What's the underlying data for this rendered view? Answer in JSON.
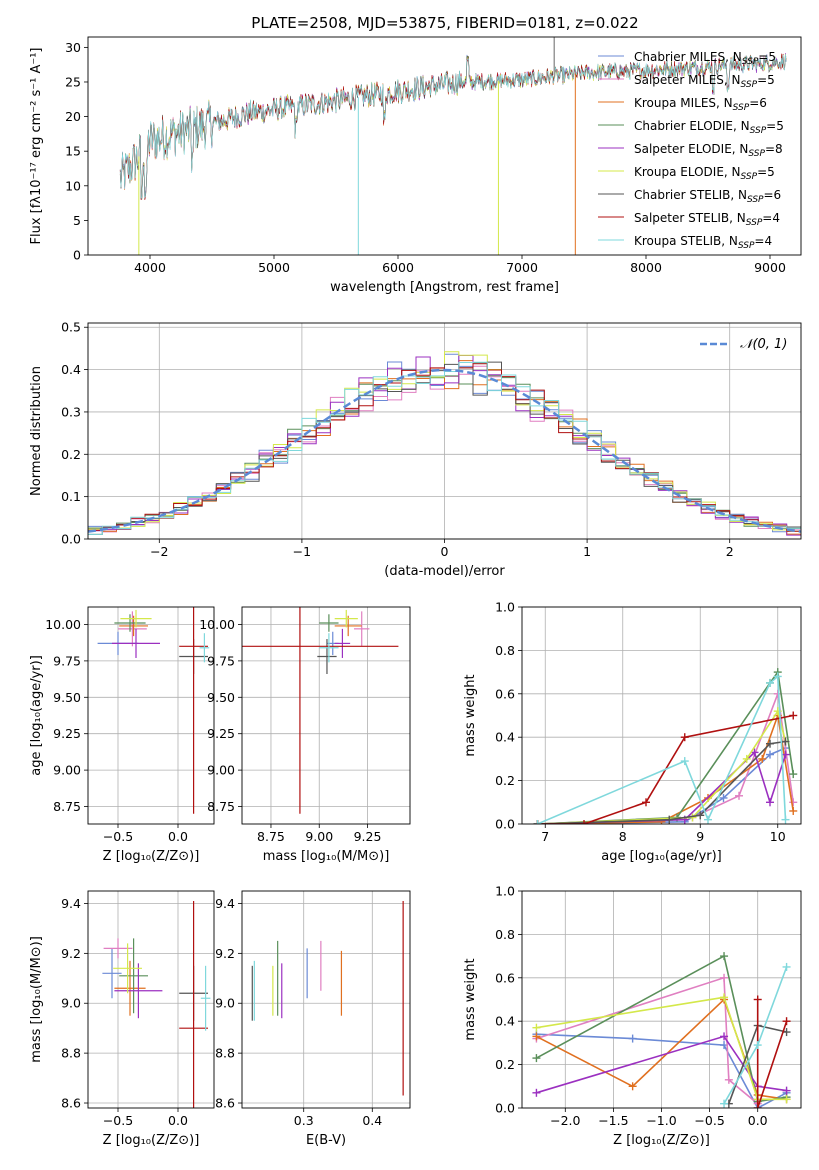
{
  "figure": {
    "title": "PLATE=2508, MJD=53875, FIBERID=0181, z=0.022"
  },
  "chart_data": [
    {
      "type": "line",
      "id": "spectrum",
      "xlabel": "wavelength [Angstrom, rest frame]",
      "ylabel": "Flux [fλ10⁻¹⁷ erg cm⁻² s⁻¹ A⁻¹]",
      "xlim": [
        3500,
        9250
      ],
      "ylim": [
        0,
        31.5
      ],
      "xticks": [
        4000,
        5000,
        6000,
        7000,
        8000,
        9000
      ],
      "yticks": [
        0,
        5,
        10,
        15,
        20,
        25,
        30
      ],
      "grid": false,
      "legend": "top-right",
      "wave_start": 3760,
      "wave_end": 9130,
      "continuum": [
        [
          3760,
          11
        ],
        [
          3900,
          14
        ],
        [
          4000,
          16.5
        ],
        [
          4200,
          17.5
        ],
        [
          4500,
          19
        ],
        [
          4800,
          20.5
        ],
        [
          5000,
          21
        ],
        [
          5500,
          22.3
        ],
        [
          6000,
          23.7
        ],
        [
          6500,
          25
        ],
        [
          7000,
          25.3
        ],
        [
          7500,
          26.3
        ],
        [
          8000,
          26.7
        ],
        [
          8500,
          27.2
        ],
        [
          9000,
          27.8
        ],
        [
          9130,
          28
        ]
      ],
      "series": [
        {
          "name": "Chabrier MILES, N_SSP=5",
          "color": "#6b8ad6"
        },
        {
          "name": "Salpeter MILES, N_SSP=5",
          "color": "#e07fc1"
        },
        {
          "name": "Kroupa MILES, N_SSP=6",
          "color": "#e07020"
        },
        {
          "name": "Chabrier ELODIE, N_SSP=5",
          "color": "#5a8f5a"
        },
        {
          "name": "Salpeter ELODIE, N_SSP=8",
          "color": "#9b30c0"
        },
        {
          "name": "Kroupa ELODIE, N_SSP=5",
          "color": "#d4e84a"
        },
        {
          "name": "Chabrier STELIB, N_SSP=6",
          "color": "#555555"
        },
        {
          "name": "Salpeter STELIB, N_SSP=4",
          "color": "#b01010"
        },
        {
          "name": "Kroupa STELIB, N_SSP=4",
          "color": "#7fd8dc"
        }
      ],
      "legend_labels": [
        {
          "pre": "Chabrier MILES, N",
          "sub": "SSP",
          "post": "=5"
        },
        {
          "pre": "Salpeter MILES, N",
          "sub": "SSP",
          "post": "=5"
        },
        {
          "pre": "Kroupa MILES, N",
          "sub": "SSP",
          "post": "=6"
        },
        {
          "pre": "Chabrier ELODIE, N",
          "sub": "SSP",
          "post": "=5"
        },
        {
          "pre": "Salpeter ELODIE, N",
          "sub": "SSP",
          "post": "=8"
        },
        {
          "pre": "Kroupa ELODIE, N",
          "sub": "SSP",
          "post": "=5"
        },
        {
          "pre": "Chabrier STELIB, N",
          "sub": "SSP",
          "post": "=6"
        },
        {
          "pre": "Salpeter STELIB, N",
          "sub": "SSP",
          "post": "=4"
        },
        {
          "pre": "Kroupa STELIB, N",
          "sub": "SSP",
          "post": "=4"
        }
      ]
    },
    {
      "type": "histogram",
      "id": "residuals",
      "xlabel": "(data-model)/error",
      "ylabel": "Normed distribution",
      "xlim": [
        -2.5,
        2.5
      ],
      "ylim": [
        0,
        0.51
      ],
      "xticks": [
        -2,
        -1,
        0,
        1,
        2
      ],
      "yticks": [
        0.0,
        0.1,
        0.2,
        0.3,
        0.4,
        0.5
      ],
      "grid": true,
      "legend": "top-right",
      "normal_label": "𝒩(0, 1)",
      "normal_color": "#5a8ad6",
      "bin_width": 0.1
    },
    {
      "type": "errorbar",
      "id": "age-vs-z",
      "xlabel": "Z [log₁₀(Z/Z⊙)]",
      "ylabel": "age  [log₁₀(age/yr)]",
      "xlim": [
        -0.75,
        0.3
      ],
      "ylim": [
        8.63,
        10.12
      ],
      "xticks": [
        -0.5,
        0.0
      ],
      "yticks": [
        8.75,
        9.0,
        9.25,
        9.5,
        9.75,
        10.0
      ],
      "grid": true,
      "points": [
        {
          "color": "#6b8ad6",
          "x": -0.5,
          "y": 9.87,
          "xe": 0.17,
          "ye": 0.08
        },
        {
          "color": "#e07fc1",
          "x": -0.38,
          "y": 9.97,
          "xe": 0.12,
          "ye": 0.12
        },
        {
          "color": "#e07020",
          "x": -0.37,
          "y": 9.99,
          "xe": 0.12,
          "ye": 0.07
        },
        {
          "color": "#5a8f5a",
          "x": -0.4,
          "y": 10.01,
          "xe": 0.13,
          "ye": 0.06
        },
        {
          "color": "#9b30c0",
          "x": -0.35,
          "y": 9.87,
          "xe": 0.2,
          "ye": 0.1
        },
        {
          "color": "#d4e84a",
          "x": -0.35,
          "y": 10.04,
          "xe": 0.13,
          "ye": 0.06
        },
        {
          "color": "#555555",
          "x": 0.13,
          "y": 9.78,
          "xe": 0.12,
          "ye": 0.12
        },
        {
          "color": "#b01010",
          "x": 0.13,
          "y": 9.85,
          "xe": 0.12,
          "ye": 1.15
        },
        {
          "color": "#7fd8dc",
          "x": 0.22,
          "y": 9.84,
          "xe": 0.04,
          "ye": 0.1
        }
      ]
    },
    {
      "type": "errorbar",
      "id": "age-vs-mass",
      "xlabel": "mass [log₁₀(M/M⊙)]",
      "ylabel": "",
      "xlim": [
        8.6,
        9.47
      ],
      "ylim": [
        8.63,
        10.12
      ],
      "xticks": [
        8.75,
        9.0,
        9.25
      ],
      "xticklabels": [
        "8.75",
        "9.00",
        "9.25"
      ],
      "yticks": [
        8.75,
        9.0,
        9.25,
        9.5,
        9.75,
        10.0
      ],
      "grid": true,
      "points": [
        {
          "color": "#6b8ad6",
          "x": 9.07,
          "y": 9.87,
          "xe": 0.03,
          "ye": 0.08
        },
        {
          "color": "#e07fc1",
          "x": 9.22,
          "y": 9.97,
          "xe": 0.04,
          "ye": 0.12
        },
        {
          "color": "#e07020",
          "x": 9.15,
          "y": 9.99,
          "xe": 0.07,
          "ye": 0.07
        },
        {
          "color": "#5a8f5a",
          "x": 9.05,
          "y": 10.01,
          "xe": 0.05,
          "ye": 0.06
        },
        {
          "color": "#9b30c0",
          "x": 9.12,
          "y": 9.87,
          "xe": 0.04,
          "ye": 0.1
        },
        {
          "color": "#d4e84a",
          "x": 9.14,
          "y": 10.04,
          "xe": 0.06,
          "ye": 0.06
        },
        {
          "color": "#555555",
          "x": 9.04,
          "y": 9.78,
          "xe": 0.05,
          "ye": 0.12
        },
        {
          "color": "#b01010",
          "x": 8.9,
          "y": 9.85,
          "xe": 0.51,
          "ye": 1.15
        },
        {
          "color": "#7fd8dc",
          "x": 9.05,
          "y": 9.84,
          "xe": 0.05,
          "ye": 0.1
        }
      ]
    },
    {
      "type": "line",
      "id": "weight-vs-age",
      "xlabel": "age  [log₁₀(age/yr)]",
      "ylabel": "mass weight",
      "xlim": [
        6.7,
        10.3
      ],
      "ylim": [
        0,
        1.0
      ],
      "xticks": [
        7,
        8,
        9,
        10
      ],
      "yticks": [
        0.0,
        0.2,
        0.4,
        0.6,
        0.8,
        1.0
      ],
      "grid": true,
      "series": [
        {
          "color": "#6b8ad6",
          "points": [
            [
              6.9,
              0.0
            ],
            [
              8.8,
              0.01
            ],
            [
              9.3,
              0.12
            ],
            [
              9.9,
              0.32
            ],
            [
              10.1,
              0.35
            ]
          ]
        },
        {
          "color": "#e07fc1",
          "points": [
            [
              6.9,
              0.0
            ],
            [
              8.9,
              0.03
            ],
            [
              9.5,
              0.13
            ],
            [
              10.0,
              0.6
            ],
            [
              10.2,
              0.1
            ]
          ]
        },
        {
          "color": "#e07020",
          "points": [
            [
              6.9,
              0.0
            ],
            [
              8.5,
              0.01
            ],
            [
              9.1,
              0.12
            ],
            [
              9.8,
              0.3
            ],
            [
              10.0,
              0.5
            ],
            [
              10.2,
              0.06
            ]
          ]
        },
        {
          "color": "#5a8f5a",
          "points": [
            [
              6.9,
              0.0
            ],
            [
              8.7,
              0.03
            ],
            [
              9.9,
              0.65
            ],
            [
              10.0,
              0.7
            ],
            [
              10.2,
              0.23
            ]
          ]
        },
        {
          "color": "#9b30c0",
          "points": [
            [
              6.9,
              0.0
            ],
            [
              8.8,
              0.02
            ],
            [
              9.7,
              0.33
            ],
            [
              9.9,
              0.1
            ],
            [
              10.1,
              0.32
            ]
          ]
        },
        {
          "color": "#d4e84a",
          "points": [
            [
              6.9,
              0.0
            ],
            [
              8.9,
              0.03
            ],
            [
              9.6,
              0.3
            ],
            [
              10.0,
              0.52
            ],
            [
              10.1,
              0.38
            ]
          ]
        },
        {
          "color": "#555555",
          "points": [
            [
              6.9,
              0.0
            ],
            [
              8.6,
              0.02
            ],
            [
              9.0,
              0.04
            ],
            [
              9.9,
              0.37
            ],
            [
              10.1,
              0.38
            ]
          ]
        },
        {
          "color": "#b01010",
          "points": [
            [
              6.9,
              0.0
            ],
            [
              7.5,
              0.0
            ],
            [
              8.3,
              0.1
            ],
            [
              8.8,
              0.4
            ],
            [
              10.2,
              0.5
            ]
          ]
        },
        {
          "color": "#7fd8dc",
          "points": [
            [
              6.9,
              0.0
            ],
            [
              8.8,
              0.29
            ],
            [
              9.1,
              0.02
            ],
            [
              9.9,
              0.65
            ],
            [
              10.0,
              0.68
            ],
            [
              10.1,
              0.02
            ]
          ]
        }
      ]
    },
    {
      "type": "errorbar",
      "id": "mass-vs-z",
      "xlabel": "Z [log₁₀(Z/Z⊙)]",
      "ylabel": "mass [log₁₀(M/M⊙)]",
      "xlim": [
        -0.75,
        0.3
      ],
      "ylim": [
        8.58,
        9.45
      ],
      "xticks": [
        -0.5,
        0.0
      ],
      "yticks": [
        8.6,
        8.8,
        9.0,
        9.2,
        9.4
      ],
      "grid": true,
      "points": [
        {
          "color": "#6b8ad6",
          "x": -0.55,
          "y": 9.12,
          "xe": 0.08,
          "ye": 0.1
        },
        {
          "color": "#e07fc1",
          "x": -0.5,
          "y": 9.22,
          "xe": 0.12,
          "ye": 0.04
        },
        {
          "color": "#e07020",
          "x": -0.4,
          "y": 9.06,
          "xe": 0.13,
          "ye": 0.11
        },
        {
          "color": "#5a8f5a",
          "x": -0.37,
          "y": 9.11,
          "xe": 0.12,
          "ye": 0.15
        },
        {
          "color": "#9b30c0",
          "x": -0.33,
          "y": 9.05,
          "xe": 0.2,
          "ye": 0.11
        },
        {
          "color": "#d4e84a",
          "x": -0.42,
          "y": 9.14,
          "xe": 0.12,
          "ye": 0.1
        },
        {
          "color": "#555555",
          "x": 0.13,
          "y": 9.04,
          "xe": 0.12,
          "ye": 0.11
        },
        {
          "color": "#b01010",
          "x": 0.13,
          "y": 8.9,
          "xe": 0.12,
          "ye": 0.51
        },
        {
          "color": "#7fd8dc",
          "x": 0.23,
          "y": 9.02,
          "xe": 0.04,
          "ye": 0.13
        }
      ]
    },
    {
      "type": "errorbar",
      "id": "mass-vs-ebv",
      "xlabel": "E(B-V)",
      "ylabel": "",
      "xlim": [
        0.21,
        0.455
      ],
      "ylim": [
        8.58,
        9.45
      ],
      "xticks": [
        0.3,
        0.4
      ],
      "yticks": [
        8.6,
        8.8,
        9.0,
        9.2,
        9.4
      ],
      "grid": true,
      "points": [
        {
          "color": "#6b8ad6",
          "x": 0.305,
          "y": 9.12,
          "xe": 0,
          "ye": 0.1
        },
        {
          "color": "#e07fc1",
          "x": 0.325,
          "y": 9.15,
          "xe": 0,
          "ye": 0.1
        },
        {
          "color": "#e07020",
          "x": 0.355,
          "y": 9.08,
          "xe": 0,
          "ye": 0.13
        },
        {
          "color": "#5a8f5a",
          "x": 0.262,
          "y": 9.1,
          "xe": 0,
          "ye": 0.15
        },
        {
          "color": "#9b30c0",
          "x": 0.268,
          "y": 9.05,
          "xe": 0,
          "ye": 0.11
        },
        {
          "color": "#d4e84a",
          "x": 0.255,
          "y": 9.05,
          "xe": 0,
          "ye": 0.1
        },
        {
          "color": "#555555",
          "x": 0.225,
          "y": 9.04,
          "xe": 0,
          "ye": 0.11
        },
        {
          "color": "#b01010",
          "x": 0.445,
          "y": 9.02,
          "xe": 0,
          "ye": 0.39
        },
        {
          "color": "#7fd8dc",
          "x": 0.228,
          "y": 9.05,
          "xe": 0,
          "ye": 0.12
        }
      ]
    },
    {
      "type": "line",
      "id": "weight-vs-z",
      "xlabel": "Z [log₁₀(Z/Z⊙)]",
      "ylabel": "mass weight",
      "xlim": [
        -2.45,
        0.45
      ],
      "ylim": [
        0,
        1.0
      ],
      "xticks": [
        -2.0,
        -1.5,
        -1.0,
        -0.5,
        0.0
      ],
      "yticks": [
        0.0,
        0.2,
        0.4,
        0.6,
        0.8,
        1.0
      ],
      "grid": true,
      "series": [
        {
          "color": "#6b8ad6",
          "points": [
            [
              -2.3,
              0.34
            ],
            [
              -1.3,
              0.32
            ],
            [
              -0.35,
              0.29
            ],
            [
              0.0,
              0.0
            ],
            [
              0.3,
              0.07
            ]
          ]
        },
        {
          "color": "#e07fc1",
          "points": [
            [
              -2.3,
              0.32
            ],
            [
              -0.35,
              0.6
            ],
            [
              -0.3,
              0.13
            ],
            [
              0.0,
              0.02
            ]
          ]
        },
        {
          "color": "#e07020",
          "points": [
            [
              -2.3,
              0.33
            ],
            [
              -1.3,
              0.1
            ],
            [
              -0.35,
              0.5
            ],
            [
              0.0,
              0.06
            ],
            [
              0.3,
              0.04
            ]
          ]
        },
        {
          "color": "#5a8f5a",
          "points": [
            [
              -2.3,
              0.23
            ],
            [
              -0.35,
              0.7
            ],
            [
              0.0,
              0.03
            ],
            [
              0.3,
              0.05
            ]
          ]
        },
        {
          "color": "#9b30c0",
          "points": [
            [
              -2.3,
              0.07
            ],
            [
              -0.35,
              0.33
            ],
            [
              0.0,
              0.1
            ],
            [
              0.3,
              0.08
            ]
          ]
        },
        {
          "color": "#d4e84a",
          "points": [
            [
              -2.3,
              0.37
            ],
            [
              -0.35,
              0.51
            ],
            [
              0.0,
              0.04
            ],
            [
              0.3,
              0.04
            ]
          ]
        },
        {
          "color": "#555555",
          "points": [
            [
              -0.3,
              0.02
            ],
            [
              0.0,
              0.38
            ],
            [
              0.3,
              0.35
            ]
          ]
        },
        {
          "color": "#b01010",
          "points": [
            [
              0.0,
              0.5
            ],
            [
              0.0,
              0.0
            ],
            [
              0.3,
              0.4
            ]
          ]
        },
        {
          "color": "#7fd8dc",
          "points": [
            [
              -0.35,
              0.02
            ],
            [
              0.0,
              0.29
            ],
            [
              0.3,
              0.65
            ]
          ]
        }
      ]
    }
  ]
}
